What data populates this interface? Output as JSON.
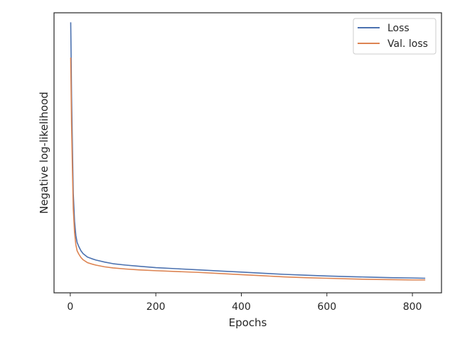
{
  "chart_data": {
    "type": "line",
    "title": "",
    "xlabel": "Epochs",
    "ylabel": "Negative log-likelihood",
    "xlim": [
      -38,
      868
    ],
    "ylim": [
      0.0,
      1.0
    ],
    "y_ticks_shown": false,
    "x_ticks": [
      0,
      200,
      400,
      600,
      800
    ],
    "grid": false,
    "legend_position": "top-right",
    "series": [
      {
        "name": "Loss",
        "color": "#4c72b0",
        "points": [
          [
            1,
            0.966
          ],
          [
            2,
            0.84
          ],
          [
            3,
            0.7
          ],
          [
            5,
            0.52
          ],
          [
            7,
            0.355
          ],
          [
            10,
            0.255
          ],
          [
            13,
            0.205
          ],
          [
            16,
            0.18
          ],
          [
            20,
            0.165
          ],
          [
            25,
            0.15
          ],
          [
            30,
            0.14
          ],
          [
            40,
            0.128
          ],
          [
            50,
            0.122
          ],
          [
            60,
            0.117
          ],
          [
            80,
            0.11
          ],
          [
            100,
            0.104
          ],
          [
            130,
            0.099
          ],
          [
            160,
            0.095
          ],
          [
            200,
            0.09
          ],
          [
            250,
            0.086
          ],
          [
            300,
            0.082
          ],
          [
            350,
            0.078
          ],
          [
            400,
            0.074
          ],
          [
            450,
            0.07
          ],
          [
            500,
            0.066
          ],
          [
            550,
            0.063
          ],
          [
            600,
            0.06
          ],
          [
            650,
            0.058
          ],
          [
            700,
            0.056
          ],
          [
            750,
            0.054
          ],
          [
            800,
            0.053
          ],
          [
            830,
            0.052
          ]
        ]
      },
      {
        "name": "Val. loss",
        "color": "#dd8452",
        "points": [
          [
            1,
            0.84
          ],
          [
            2,
            0.72
          ],
          [
            3,
            0.6
          ],
          [
            5,
            0.44
          ],
          [
            7,
            0.3
          ],
          [
            10,
            0.215
          ],
          [
            13,
            0.172
          ],
          [
            16,
            0.15
          ],
          [
            20,
            0.138
          ],
          [
            25,
            0.126
          ],
          [
            30,
            0.118
          ],
          [
            40,
            0.108
          ],
          [
            50,
            0.103
          ],
          [
            60,
            0.099
          ],
          [
            80,
            0.093
          ],
          [
            100,
            0.089
          ],
          [
            130,
            0.085
          ],
          [
            160,
            0.082
          ],
          [
            200,
            0.079
          ],
          [
            250,
            0.076
          ],
          [
            300,
            0.073
          ],
          [
            350,
            0.069
          ],
          [
            400,
            0.065
          ],
          [
            450,
            0.061
          ],
          [
            500,
            0.057
          ],
          [
            550,
            0.054
          ],
          [
            600,
            0.052
          ],
          [
            650,
            0.05
          ],
          [
            700,
            0.048
          ],
          [
            750,
            0.047
          ],
          [
            800,
            0.046
          ],
          [
            830,
            0.046
          ]
        ]
      }
    ]
  }
}
